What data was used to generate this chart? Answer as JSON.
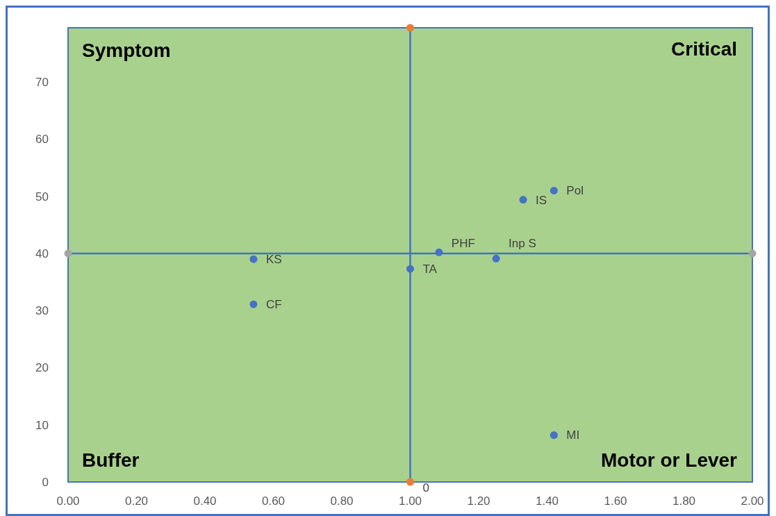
{
  "chart_data": {
    "type": "scatter",
    "xlim": [
      0,
      2
    ],
    "ylim": [
      0,
      79.5
    ],
    "xticks": [
      {
        "value": 0,
        "label": "0.00"
      },
      {
        "value": 0.2,
        "label": "0.20"
      },
      {
        "value": 0.4,
        "label": "0.40"
      },
      {
        "value": 0.6,
        "label": "0.60"
      },
      {
        "value": 0.8,
        "label": "0.80"
      },
      {
        "value": 1,
        "label": "1.00"
      },
      {
        "value": 1.2,
        "label": "1.20"
      },
      {
        "value": 1.4,
        "label": "1.40"
      },
      {
        "value": 1.6,
        "label": "1.60"
      },
      {
        "value": 1.8,
        "label": "1.80"
      },
      {
        "value": 2,
        "label": "2.00"
      }
    ],
    "yticks": [
      0,
      10,
      20,
      30,
      40,
      50,
      60,
      70
    ],
    "grid": false,
    "marker": "circle",
    "ref_lines": [
      {
        "axis": "x",
        "value": 1,
        "color": "#4472c4"
      },
      {
        "axis": "y",
        "value": 40,
        "color": "#4472c4"
      }
    ],
    "series": [
      {
        "color": "#4472c4",
        "x": [
          0.542,
          0.542,
          1.0,
          1.084,
          1.251,
          1.33,
          1.42,
          1.42
        ],
        "values": [
          39.0,
          31.1,
          37.3,
          40.2,
          39.1,
          49.4,
          51.0,
          8.2
        ]
      },
      {
        "color": "#ed7d31",
        "x": [
          1,
          1
        ],
        "values": [
          0,
          79.5
        ]
      },
      {
        "color": "#a5a5a5",
        "x": [
          0,
          2
        ],
        "values": [
          40,
          40
        ]
      }
    ],
    "annotations": [
      "Symptom",
      "Critical",
      "Buffer",
      "Motor or Lever",
      {
        "text": "KS",
        "x": 0.542,
        "y": 39.0
      },
      {
        "text": "CF",
        "x": 0.542,
        "y": 31.1
      },
      {
        "text": "TA",
        "x": 1.0,
        "y": 37.3
      },
      {
        "text": "PHF",
        "x": 1.084,
        "y": 40.2
      },
      {
        "text": "Inp S",
        "x": 1.251,
        "y": 39.1
      },
      {
        "text": "IS",
        "x": 1.33,
        "y": 49.4
      },
      {
        "text": "Pol",
        "x": 1.42,
        "y": 51.0
      },
      {
        "text": "MI",
        "x": 1.42,
        "y": 8.2
      },
      {
        "text": "0",
        "x": 1,
        "y": 0
      }
    ]
  }
}
